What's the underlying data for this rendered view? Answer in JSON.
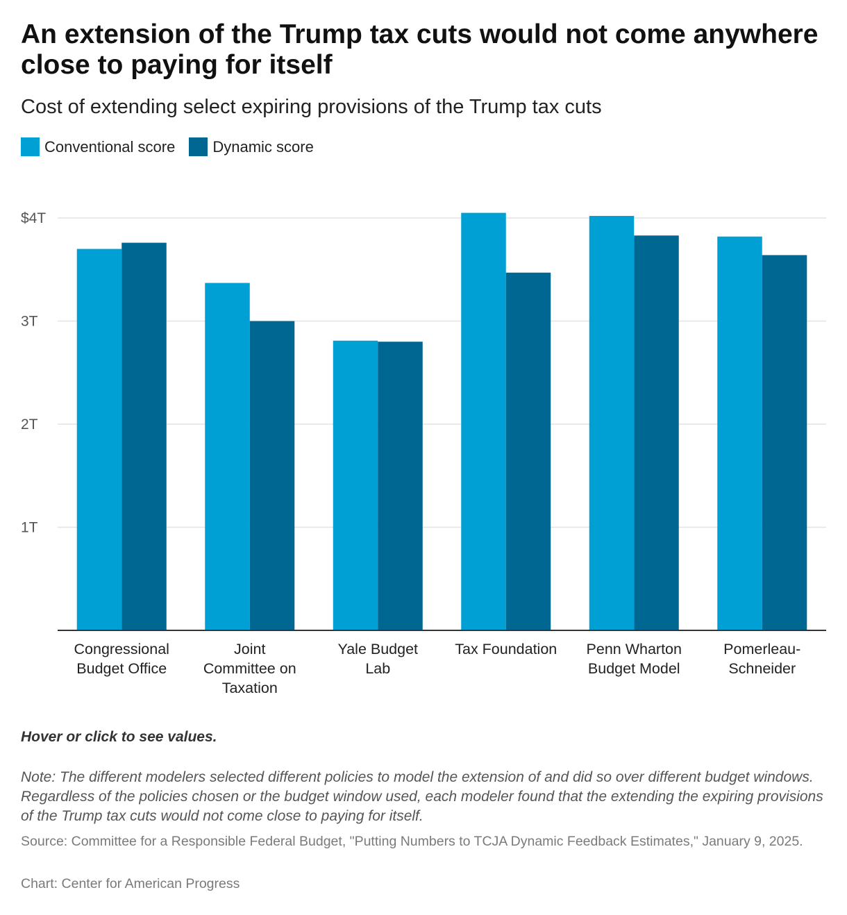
{
  "title": "An extension of the Trump tax cuts would not come anywhere close to paying for itself",
  "subtitle": "Cost of extending select expiring provisions of the Trump tax cuts",
  "hint": "Hover or click to see values.",
  "note": "Note: The different modelers selected different policies to model the extension of and did so over different budget windows. Regardless of the policies chosen or the budget window used, each modeler found that the extending the expiring provisions of the Trump tax cuts would not come close to paying for itself.",
  "source": "Source: Committee for a Responsible Federal Budget, \"Putting Numbers to TCJA Dynamic Feedback Estimates,\" January 9, 2025.",
  "credit": "Chart: Center for American Progress",
  "chart_data": {
    "type": "bar",
    "title": "Cost of extending select expiring provisions of the Trump tax cuts",
    "xlabel": "",
    "ylabel": "",
    "ylim": [
      0,
      4
    ],
    "yticks": [
      1,
      2,
      3,
      4
    ],
    "ytick_labels": [
      "1T",
      "2T",
      "3T",
      "$4T"
    ],
    "grid": true,
    "legend_position": "top-left",
    "categories": [
      [
        "Congressional",
        "Budget Office"
      ],
      [
        "Joint",
        "Committee on",
        "Taxation"
      ],
      [
        "Yale Budget",
        "Lab"
      ],
      [
        "Tax Foundation"
      ],
      [
        "Penn Wharton",
        "Budget Model"
      ],
      [
        "Pomerleau-",
        "Schneider"
      ]
    ],
    "series": [
      {
        "name": "Conventional score",
        "color": "#009fd4",
        "values": [
          3.7,
          3.37,
          2.81,
          4.05,
          4.02,
          3.82
        ]
      },
      {
        "name": "Dynamic score",
        "color": "#006793",
        "values": [
          3.76,
          3.0,
          2.8,
          3.47,
          3.83,
          3.64
        ]
      }
    ]
  }
}
